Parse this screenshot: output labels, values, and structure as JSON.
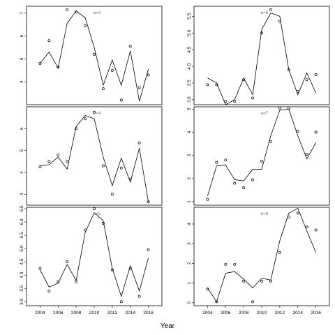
{
  "chart_data": {
    "type": "line",
    "xlabel": "Year",
    "panels": [
      {
        "label": "a=3",
        "xlim": [
          2002.5,
          2017.5
        ],
        "ylim": [
          3.0,
          7.3
        ],
        "yticks": [
          4,
          5,
          6,
          7
        ],
        "xticks": [],
        "x": [
          2004,
          2005,
          2006,
          2007,
          2008,
          2009,
          2010,
          2011,
          2012,
          2013,
          2014,
          2015,
          2016
        ],
        "points": [
          4.8,
          5.8,
          4.65,
          7.15,
          7.05,
          6.45,
          5.2,
          3.7,
          4.5,
          3.2,
          5.55,
          3.75,
          4.3
        ],
        "fit": [
          4.8,
          5.3,
          4.6,
          6.55,
          7.1,
          6.8,
          5.5,
          3.85,
          4.95,
          3.85,
          5.35,
          3.15,
          4.55
        ]
      },
      {
        "label": "a=4",
        "xlim": [
          2002.5,
          2017.5
        ],
        "ylim": [
          2.5,
          7.0
        ],
        "yticks": [
          3,
          4,
          5,
          6
        ],
        "xticks": [],
        "x": [
          2004,
          2005,
          2006,
          2007,
          2008,
          2009,
          2010,
          2011,
          2012,
          2013,
          2014,
          2015,
          2016
        ],
        "points": [
          4.25,
          4.5,
          4.8,
          4.5,
          6.0,
          6.45,
          6.75,
          4.3,
          3.0,
          4.2,
          3.7,
          5.35,
          2.65
        ],
        "fit": [
          4.3,
          4.35,
          4.7,
          4.15,
          6.1,
          6.6,
          6.45,
          4.7,
          3.4,
          4.65,
          3.55,
          5.1,
          2.65
        ]
      },
      {
        "label": "a=5",
        "xlim": [
          2002.5,
          2017.5
        ],
        "ylim": [
          2.85,
          6.55
        ],
        "yticks": [
          3.0,
          3.5,
          4.0,
          4.5,
          5.0,
          5.5,
          6.0,
          6.5
        ],
        "xticks": [
          2004,
          2006,
          2008,
          2010,
          2012,
          2014,
          2016
        ],
        "x": [
          2004,
          2005,
          2006,
          2007,
          2008,
          2009,
          2010,
          2011,
          2012,
          2013,
          2014,
          2015,
          2016
        ],
        "points": [
          4.25,
          3.4,
          3.75,
          4.5,
          3.75,
          5.7,
          6.5,
          5.95,
          4.2,
          3.0,
          4.25,
          3.2,
          4.95
        ],
        "fit": [
          4.2,
          3.55,
          3.7,
          4.4,
          3.8,
          5.6,
          6.35,
          6.05,
          4.25,
          3.2,
          4.35,
          3.4,
          4.65
        ]
      },
      {
        "label": "a=6",
        "xlim": [
          2002.5,
          2017.5
        ],
        "ylim": [
          2.85,
          5.8
        ],
        "yticks": [
          3.0,
          3.5,
          4.0,
          4.5,
          5.0,
          5.5
        ],
        "xticks": [],
        "x": [
          2004,
          2005,
          2006,
          2007,
          2008,
          2009,
          2010,
          2011,
          2012,
          2013,
          2014,
          2015,
          2016
        ],
        "points": [
          3.45,
          3.45,
          2.95,
          2.95,
          3.6,
          3.05,
          5.0,
          5.7,
          5.35,
          3.9,
          3.25,
          3.6,
          3.75
        ],
        "fit": [
          3.65,
          3.5,
          2.85,
          3.0,
          3.65,
          3.15,
          5.1,
          5.6,
          5.5,
          3.9,
          3.15,
          3.8,
          3.2
        ]
      },
      {
        "label": "a=7",
        "xlim": [
          2002.5,
          2017.5
        ],
        "ylim": [
          0.85,
          5.1
        ],
        "yticks": [
          1,
          2,
          3,
          4,
          5
        ],
        "xticks": [],
        "x": [
          2004,
          2005,
          2006,
          2007,
          2008,
          2009,
          2010,
          2011,
          2012,
          2013,
          2014,
          2015,
          2016
        ],
        "points": [
          1.1,
          2.7,
          2.8,
          1.8,
          1.6,
          1.95,
          2.75,
          3.6,
          5.05,
          5.05,
          4.05,
          3.05,
          4.0
        ],
        "fit": [
          1.25,
          2.55,
          2.58,
          1.95,
          1.9,
          2.4,
          2.4,
          3.85,
          4.95,
          5.0,
          3.85,
          2.85,
          3.55
        ]
      },
      {
        "label": "a=8",
        "xlim": [
          2002.5,
          2017.5
        ],
        "ylim": [
          -0.15,
          4.85
        ],
        "yticks": [
          0,
          1,
          2,
          3,
          4
        ],
        "xticks": [
          2004,
          2006,
          2008,
          2010,
          2012,
          2014,
          2016
        ],
        "x": [
          2004,
          2005,
          2006,
          2007,
          2008,
          2009,
          2010,
          2011,
          2012,
          2013,
          2014,
          2015,
          2016
        ],
        "points": [
          0.7,
          0.05,
          1.95,
          1.95,
          1.1,
          0.05,
          1.1,
          1.1,
          2.55,
          4.35,
          4.55,
          3.85,
          3.7
        ],
        "fit": [
          0.75,
          0.05,
          1.5,
          1.58,
          1.2,
          0.75,
          1.25,
          1.15,
          3.15,
          4.55,
          4.8,
          3.65,
          2.55
        ]
      }
    ]
  }
}
